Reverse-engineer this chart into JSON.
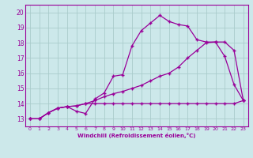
{
  "background_color": "#cce8ea",
  "grid_color": "#aacccc",
  "line_color": "#990099",
  "xlabel": "Windchill (Refroidissement éolien,°C)",
  "xlim": [
    -0.5,
    23.5
  ],
  "ylim": [
    12.5,
    20.5
  ],
  "yticks": [
    13,
    14,
    15,
    16,
    17,
    18,
    19,
    20
  ],
  "xticks": [
    0,
    1,
    2,
    3,
    4,
    5,
    6,
    7,
    8,
    9,
    10,
    11,
    12,
    13,
    14,
    15,
    16,
    17,
    18,
    19,
    20,
    21,
    22,
    23
  ],
  "curve1_x": [
    0,
    1,
    2,
    3,
    4,
    5,
    6,
    7,
    8,
    9,
    10,
    11,
    12,
    13,
    14,
    15,
    16,
    17,
    18,
    19,
    20,
    21,
    22,
    23
  ],
  "curve1_y": [
    13.0,
    13.0,
    13.4,
    13.7,
    13.8,
    13.5,
    13.35,
    14.3,
    14.7,
    15.8,
    15.9,
    17.8,
    18.8,
    19.3,
    19.8,
    19.4,
    19.2,
    19.1,
    18.2,
    18.05,
    18.05,
    17.1,
    15.25,
    14.2
  ],
  "curve2_x": [
    0,
    1,
    2,
    3,
    4,
    5,
    6,
    7,
    8,
    9,
    10,
    11,
    12,
    13,
    14,
    15,
    16,
    17,
    18,
    19,
    20,
    21,
    22,
    23
  ],
  "curve2_y": [
    13.0,
    13.0,
    13.4,
    13.7,
    13.8,
    13.85,
    14.0,
    14.2,
    14.45,
    14.65,
    14.8,
    15.0,
    15.2,
    15.5,
    15.8,
    16.0,
    16.4,
    17.0,
    17.5,
    18.0,
    18.05,
    18.05,
    17.5,
    14.2
  ],
  "curve3_x": [
    0,
    1,
    2,
    3,
    4,
    5,
    6,
    7,
    8,
    9,
    10,
    11,
    12,
    13,
    14,
    15,
    16,
    17,
    18,
    19,
    20,
    21,
    22,
    23
  ],
  "curve3_y": [
    13.0,
    13.0,
    13.4,
    13.7,
    13.8,
    13.85,
    14.0,
    14.0,
    14.0,
    14.0,
    14.0,
    14.0,
    14.0,
    14.0,
    14.0,
    14.0,
    14.0,
    14.0,
    14.0,
    14.0,
    14.0,
    14.0,
    14.0,
    14.2
  ]
}
